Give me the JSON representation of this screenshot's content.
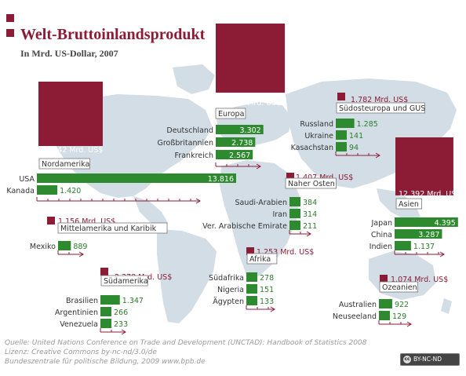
{
  "title": "Welt-Bruttoinlandsprodukt",
  "subtitle": "In Mrd. US-Dollar, 2007",
  "source_lines": [
    "Quelle: United Nations Conference on Trade and Development (UNCTAD): Handbook of Statistics 2008",
    "Lizenz: Creative Commons  by-nc-nd/3.0/de",
    "Bundeszentrale für politische Bildung, 2009 www.bpb.de"
  ],
  "license_badge": "BY-NC-ND",
  "colors": {
    "region": "#8c1c36",
    "country": "#2e8a2e",
    "map": "#d3dde5",
    "axis": "#8c1c36"
  },
  "chart_data": {
    "type": "bar",
    "unit": "Mrd. US$",
    "regions": [
      {
        "name": "Nordamerika",
        "total": 15242,
        "total_label": "15.242 Mrd. US$",
        "countries": [
          {
            "name": "USA",
            "value": 13816,
            "label": "13.816"
          },
          {
            "name": "Kanada",
            "value": 1420,
            "label": "1.420"
          }
        ]
      },
      {
        "name": "Europa",
        "total": 17589,
        "total_label": "17.589 Mrd. US$",
        "countries": [
          {
            "name": "Deutschland",
            "value": 3302,
            "label": "3.302"
          },
          {
            "name": "Großbritannien",
            "value": 2738,
            "label": "2.738"
          },
          {
            "name": "Frankreich",
            "value": 2567,
            "label": "2.567"
          }
        ]
      },
      {
        "name": "Südosteuropa und GUS",
        "total": 1782,
        "total_label": "1.782 Mrd. US$",
        "countries": [
          {
            "name": "Russland",
            "value": 1285,
            "label": "1.285"
          },
          {
            "name": "Ukraine",
            "value": 141,
            "label": "141"
          },
          {
            "name": "Kasachstan",
            "value": 94,
            "label": "94"
          }
        ]
      },
      {
        "name": "Naher Osten",
        "total": 1407,
        "total_label": "1.407 Mrd. US$",
        "countries": [
          {
            "name": "Saudi-Arabien",
            "value": 384,
            "label": "384"
          },
          {
            "name": "Iran",
            "value": 314,
            "label": "314"
          },
          {
            "name": "Ver. Arabische Emirate",
            "value": 211,
            "label": "211"
          }
        ]
      },
      {
        "name": "Asien",
        "total": 12392,
        "total_label": "12.392 Mrd. US$",
        "countries": [
          {
            "name": "Japan",
            "value": 4395,
            "label": "4.395"
          },
          {
            "name": "China",
            "value": 3287,
            "label": "3.287"
          },
          {
            "name": "Indien",
            "value": 1137,
            "label": "1.137"
          }
        ]
      },
      {
        "name": "Mittelamerika und Karibik",
        "total": 1156,
        "total_label": "1.156 Mrd. US$",
        "countries": [
          {
            "name": "Mexiko",
            "value": 889,
            "label": "889"
          }
        ]
      },
      {
        "name": "Afrika",
        "total": 1253,
        "total_label": "1.253 Mrd. US$",
        "countries": [
          {
            "name": "Südafrika",
            "value": 278,
            "label": "278"
          },
          {
            "name": "Nigeria",
            "value": 151,
            "label": "151"
          },
          {
            "name": "Ägypten",
            "value": 133,
            "label": "133"
          }
        ]
      },
      {
        "name": "Südamerika",
        "total": 2378,
        "total_label": "2.378 Mrd. US$",
        "countries": [
          {
            "name": "Brasilien",
            "value": 1347,
            "label": "1.347"
          },
          {
            "name": "Argentinien",
            "value": 266,
            "label": "266"
          },
          {
            "name": "Venezuela",
            "value": 233,
            "label": "233"
          }
        ]
      },
      {
        "name": "Ozeanien",
        "total": 1074,
        "total_label": "1.074 Mrd. US$",
        "countries": [
          {
            "name": "Australien",
            "value": 922,
            "label": "922"
          },
          {
            "name": "Neuseeland",
            "value": 129,
            "label": "129"
          }
        ]
      }
    ]
  }
}
